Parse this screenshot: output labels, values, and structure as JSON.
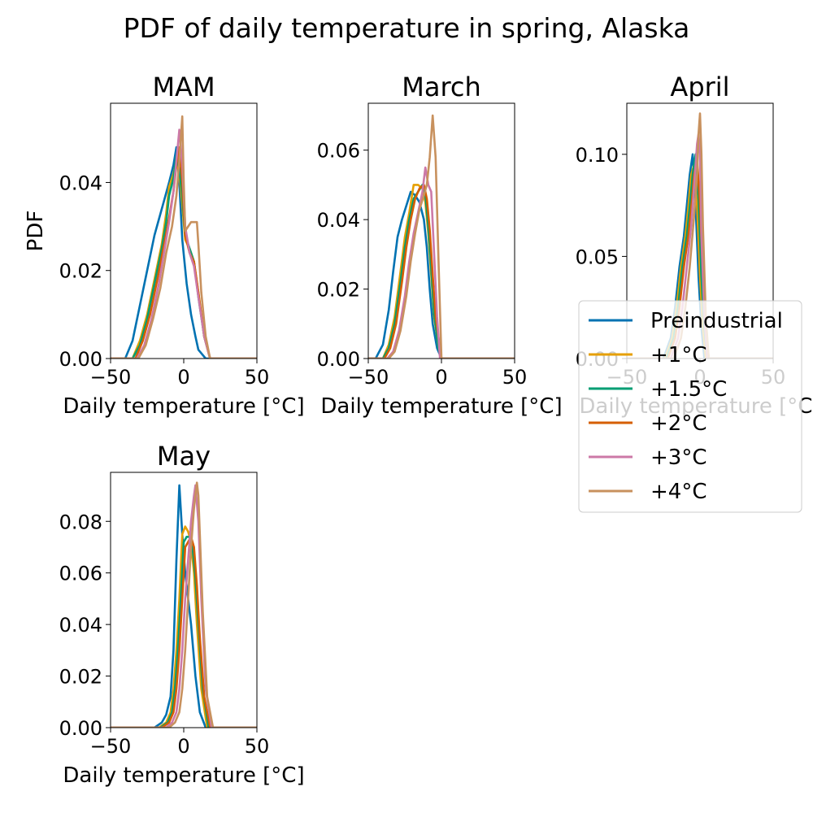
{
  "title": "PDF of daily temperature in spring, Alaska",
  "colors": {
    "Preindustrial": "#0072b2",
    "+1°C": "#e69f00",
    "+1.5°C": "#009e73",
    "+2°C": "#d55e00",
    "+3°C": "#cc79a7",
    "+4°C": "#c8915e"
  },
  "legend": {
    "position": "right, overlapping April panel",
    "entries": [
      "Preindustrial",
      "+1°C",
      "+1.5°C",
      "+2°C",
      "+3°C",
      "+4°C"
    ]
  },
  "chart_data": [
    {
      "type": "line",
      "title": "MAM",
      "xlabel": "Daily temperature [°C]",
      "ylabel": "PDF",
      "xlim": [
        -50,
        50
      ],
      "ylim": [
        0,
        0.058
      ],
      "xticks": [
        "−50",
        "0",
        "50"
      ],
      "xtick_values": [
        -50,
        0,
        50
      ],
      "yticks": [
        "0.00",
        "0.02",
        "0.04"
      ],
      "ytick_values": [
        0,
        0.02,
        0.04
      ],
      "series": [
        {
          "name": "Preindustrial",
          "x": [
            -50,
            -40,
            -35,
            -30,
            -25,
            -20,
            -15,
            -10,
            -7,
            -5,
            -3,
            -1,
            2,
            5,
            8,
            10,
            15,
            50
          ],
          "y": [
            0,
            0,
            0.004,
            0.012,
            0.02,
            0.028,
            0.034,
            0.04,
            0.044,
            0.048,
            0.04,
            0.027,
            0.017,
            0.01,
            0.005,
            0.002,
            0,
            0
          ]
        },
        {
          "name": "+1°C",
          "x": [
            -50,
            -35,
            -30,
            -25,
            -20,
            -15,
            -12,
            -10,
            -7,
            -5,
            -3,
            -1,
            1,
            4,
            7,
            10,
            14,
            18,
            50
          ],
          "y": [
            0,
            0,
            0.004,
            0.01,
            0.018,
            0.026,
            0.033,
            0.039,
            0.042,
            0.045,
            0.042,
            0.035,
            0.027,
            0.025,
            0.022,
            0.015,
            0.005,
            0,
            0
          ]
        },
        {
          "name": "+1.5°C",
          "x": [
            -50,
            -35,
            -30,
            -25,
            -20,
            -15,
            -12,
            -10,
            -7,
            -5,
            -3,
            -1,
            1,
            4,
            7,
            10,
            14,
            18,
            50
          ],
          "y": [
            0,
            0,
            0.003,
            0.009,
            0.017,
            0.025,
            0.031,
            0.037,
            0.041,
            0.046,
            0.043,
            0.037,
            0.028,
            0.025,
            0.022,
            0.014,
            0.005,
            0,
            0
          ]
        },
        {
          "name": "+2°C",
          "x": [
            -50,
            -33,
            -28,
            -23,
            -18,
            -14,
            -10,
            -7,
            -5,
            -3,
            -1,
            1,
            4,
            7,
            10,
            14,
            18,
            50
          ],
          "y": [
            0,
            0,
            0.004,
            0.01,
            0.018,
            0.025,
            0.032,
            0.038,
            0.044,
            0.048,
            0.04,
            0.028,
            0.024,
            0.022,
            0.015,
            0.005,
            0,
            0
          ]
        },
        {
          "name": "+3°C",
          "x": [
            -50,
            -32,
            -27,
            -22,
            -17,
            -13,
            -10,
            -7,
            -5,
            -3,
            -1,
            1,
            4,
            7,
            10,
            14,
            18,
            50
          ],
          "y": [
            0,
            0,
            0.003,
            0.009,
            0.017,
            0.025,
            0.031,
            0.038,
            0.045,
            0.052,
            0.044,
            0.03,
            0.024,
            0.021,
            0.014,
            0.005,
            0,
            0
          ]
        },
        {
          "name": "+4°C",
          "x": [
            -50,
            -31,
            -26,
            -21,
            -16,
            -12,
            -8,
            -5,
            -3,
            -1,
            0,
            1,
            3,
            5,
            7,
            9,
            10,
            12,
            15,
            18,
            50
          ],
          "y": [
            0,
            0,
            0.003,
            0.009,
            0.016,
            0.024,
            0.03,
            0.037,
            0.045,
            0.055,
            0.04,
            0.029,
            0.03,
            0.031,
            0.031,
            0.031,
            0.026,
            0.015,
            0.005,
            0,
            0
          ]
        }
      ]
    },
    {
      "type": "line",
      "title": "March",
      "xlabel": "Daily temperature [°C]",
      "ylabel": "",
      "xlim": [
        -50,
        50
      ],
      "ylim": [
        0,
        0.0735
      ],
      "xticks": [
        "−50",
        "0",
        "50"
      ],
      "xtick_values": [
        -50,
        0,
        50
      ],
      "yticks": [
        "0.00",
        "0.02",
        "0.04",
        "0.06"
      ],
      "ytick_values": [
        0,
        0.02,
        0.04,
        0.06
      ],
      "series": [
        {
          "name": "Preindustrial",
          "x": [
            -50,
            -45,
            -40,
            -36,
            -33,
            -30,
            -27,
            -24,
            -21,
            -18,
            -15,
            -12,
            -10,
            -8,
            -6,
            -3,
            0,
            50
          ],
          "y": [
            0,
            0,
            0.004,
            0.014,
            0.025,
            0.035,
            0.04,
            0.044,
            0.048,
            0.047,
            0.045,
            0.04,
            0.032,
            0.02,
            0.01,
            0.003,
            0,
            0
          ]
        },
        {
          "name": "+1°C",
          "x": [
            -50,
            -40,
            -36,
            -32,
            -28,
            -25,
            -22,
            -19,
            -16,
            -13,
            -11,
            -9,
            -7,
            -5,
            -2,
            0,
            50
          ],
          "y": [
            0,
            0,
            0.004,
            0.012,
            0.025,
            0.035,
            0.042,
            0.05,
            0.05,
            0.049,
            0.045,
            0.036,
            0.024,
            0.012,
            0.003,
            0,
            0
          ]
        },
        {
          "name": "+1.5°C",
          "x": [
            -50,
            -40,
            -36,
            -32,
            -28,
            -25,
            -22,
            -19,
            -16,
            -13,
            -11,
            -9,
            -7,
            -5,
            -2,
            0,
            50
          ],
          "y": [
            0,
            0,
            0.003,
            0.01,
            0.022,
            0.032,
            0.04,
            0.046,
            0.048,
            0.05,
            0.047,
            0.038,
            0.026,
            0.013,
            0.003,
            0,
            0
          ]
        },
        {
          "name": "+2°C",
          "x": [
            -50,
            -39,
            -35,
            -31,
            -27,
            -24,
            -21,
            -18,
            -15,
            -12,
            -10,
            -8,
            -6,
            -4,
            -1,
            0,
            50
          ],
          "y": [
            0,
            0,
            0.003,
            0.01,
            0.022,
            0.032,
            0.04,
            0.046,
            0.049,
            0.05,
            0.046,
            0.037,
            0.024,
            0.012,
            0.003,
            0,
            0
          ]
        },
        {
          "name": "+3°C",
          "x": [
            -50,
            -37,
            -33,
            -29,
            -25,
            -22,
            -19,
            -16,
            -13,
            -11,
            -9,
            -7,
            -5,
            -3,
            -1,
            50
          ],
          "y": [
            0,
            0,
            0.002,
            0.008,
            0.018,
            0.028,
            0.036,
            0.042,
            0.048,
            0.055,
            0.05,
            0.048,
            0.03,
            0.012,
            0,
            0
          ]
        },
        {
          "name": "+4°C",
          "x": [
            -50,
            -36,
            -32,
            -28,
            -24,
            -21,
            -18,
            -15,
            -12,
            -10,
            -8,
            -6,
            -4,
            -2,
            0,
            50
          ],
          "y": [
            0,
            0,
            0.002,
            0.008,
            0.018,
            0.028,
            0.036,
            0.043,
            0.047,
            0.05,
            0.058,
            0.07,
            0.058,
            0.028,
            0,
            0
          ]
        }
      ]
    },
    {
      "type": "line",
      "title": "April",
      "xlabel": "Daily temperature [°C]",
      "ylabel": "",
      "xlim": [
        -50,
        50
      ],
      "ylim": [
        0,
        0.125
      ],
      "xticks": [
        "−50",
        "0",
        "50"
      ],
      "xtick_values": [
        -50,
        0,
        50
      ],
      "yticks": [
        "0.00",
        "0.05",
        "0.10"
      ],
      "ytick_values": [
        0,
        0.05,
        0.1
      ],
      "series": [
        {
          "name": "Preindustrial",
          "x": [
            -50,
            -25,
            -20,
            -17,
            -14,
            -11,
            -9,
            -7,
            -5,
            -3,
            -1,
            1,
            3,
            50
          ],
          "y": [
            0,
            0,
            0.01,
            0.025,
            0.045,
            0.06,
            0.075,
            0.09,
            0.1,
            0.075,
            0.04,
            0.015,
            0,
            0
          ]
        },
        {
          "name": "+1°C",
          "x": [
            -50,
            -24,
            -19,
            -16,
            -13,
            -10,
            -8,
            -6,
            -4,
            -2,
            0,
            2,
            4,
            50
          ],
          "y": [
            0,
            0,
            0.01,
            0.025,
            0.045,
            0.06,
            0.074,
            0.09,
            0.095,
            0.075,
            0.04,
            0.015,
            0,
            0
          ]
        },
        {
          "name": "+1.5°C",
          "x": [
            -50,
            -23,
            -18,
            -15,
            -12,
            -9,
            -7,
            -5,
            -3,
            -1,
            1,
            3,
            5,
            50
          ],
          "y": [
            0,
            0,
            0.01,
            0.025,
            0.045,
            0.06,
            0.074,
            0.09,
            0.1,
            0.078,
            0.04,
            0.015,
            0,
            0
          ]
        },
        {
          "name": "+2°C",
          "x": [
            -50,
            -22,
            -17,
            -14,
            -11,
            -8,
            -6,
            -4,
            -2,
            0,
            2,
            4,
            6,
            50
          ],
          "y": [
            0,
            0,
            0.01,
            0.025,
            0.045,
            0.06,
            0.074,
            0.09,
            0.098,
            0.075,
            0.04,
            0.015,
            0,
            0
          ]
        },
        {
          "name": "+3°C",
          "x": [
            -50,
            -20,
            -15,
            -12,
            -9,
            -6,
            -4,
            -2,
            -1,
            0,
            1,
            3,
            5,
            50
          ],
          "y": [
            0,
            0,
            0.01,
            0.025,
            0.045,
            0.065,
            0.085,
            0.105,
            0.11,
            0.1,
            0.06,
            0.02,
            0,
            0
          ]
        },
        {
          "name": "+4°C",
          "x": [
            -50,
            -18,
            -13,
            -10,
            -7,
            -4,
            -2,
            -1,
            0,
            1,
            2,
            4,
            6,
            50
          ],
          "y": [
            0,
            0,
            0.01,
            0.025,
            0.045,
            0.07,
            0.09,
            0.11,
            0.12,
            0.1,
            0.065,
            0.02,
            0,
            0
          ]
        }
      ]
    },
    {
      "type": "line",
      "title": "May",
      "xlabel": "Daily temperature [°C]",
      "ylabel": "",
      "xlim": [
        -50,
        50
      ],
      "ylim": [
        0,
        0.099
      ],
      "xticks": [
        "−50",
        "0",
        "50"
      ],
      "xtick_values": [
        -50,
        0,
        50
      ],
      "yticks": [
        "0.00",
        "0.02",
        "0.04",
        "0.06",
        "0.08"
      ],
      "ytick_values": [
        0,
        0.02,
        0.04,
        0.06,
        0.08
      ],
      "series": [
        {
          "name": "Preindustrial",
          "x": [
            -50,
            -20,
            -15,
            -12,
            -9,
            -7,
            -5,
            -3,
            -1,
            1,
            3,
            5,
            8,
            11,
            15,
            50
          ],
          "y": [
            0,
            0,
            0.002,
            0.005,
            0.012,
            0.03,
            0.065,
            0.094,
            0.075,
            0.06,
            0.05,
            0.04,
            0.02,
            0.006,
            0,
            0
          ]
        },
        {
          "name": "+1°C",
          "x": [
            -50,
            -17,
            -12,
            -9,
            -7,
            -5,
            -3,
            -1,
            1,
            3,
            5,
            7,
            9,
            12,
            16,
            50
          ],
          "y": [
            0,
            0,
            0.002,
            0.006,
            0.015,
            0.03,
            0.05,
            0.075,
            0.078,
            0.076,
            0.072,
            0.06,
            0.04,
            0.015,
            0,
            0
          ]
        },
        {
          "name": "+1.5°C",
          "x": [
            -50,
            -16,
            -11,
            -8,
            -6,
            -4,
            -2,
            0,
            2,
            4,
            6,
            8,
            10,
            13,
            17,
            50
          ],
          "y": [
            0,
            0,
            0.002,
            0.006,
            0.015,
            0.03,
            0.05,
            0.072,
            0.074,
            0.074,
            0.07,
            0.058,
            0.04,
            0.015,
            0,
            0
          ]
        },
        {
          "name": "+2°C",
          "x": [
            -50,
            -15,
            -10,
            -7,
            -5,
            -3,
            -1,
            1,
            3,
            5,
            7,
            9,
            11,
            14,
            18,
            50
          ],
          "y": [
            0,
            0,
            0.002,
            0.006,
            0.015,
            0.03,
            0.05,
            0.07,
            0.072,
            0.074,
            0.07,
            0.055,
            0.035,
            0.012,
            0,
            0
          ]
        },
        {
          "name": "+3°C",
          "x": [
            -50,
            -12,
            -8,
            -5,
            -3,
            -1,
            1,
            3,
            5,
            7,
            8,
            10,
            12,
            15,
            19,
            50
          ],
          "y": [
            0,
            0,
            0.002,
            0.006,
            0.015,
            0.03,
            0.05,
            0.065,
            0.08,
            0.09,
            0.094,
            0.08,
            0.05,
            0.015,
            0,
            0
          ]
        },
        {
          "name": "+4°C",
          "x": [
            -50,
            -10,
            -6,
            -3,
            -1,
            1,
            3,
            5,
            7,
            9,
            10,
            11,
            13,
            16,
            20,
            50
          ],
          "y": [
            0,
            0,
            0.002,
            0.006,
            0.015,
            0.03,
            0.05,
            0.07,
            0.085,
            0.095,
            0.09,
            0.075,
            0.045,
            0.012,
            0,
            0
          ]
        }
      ]
    }
  ]
}
